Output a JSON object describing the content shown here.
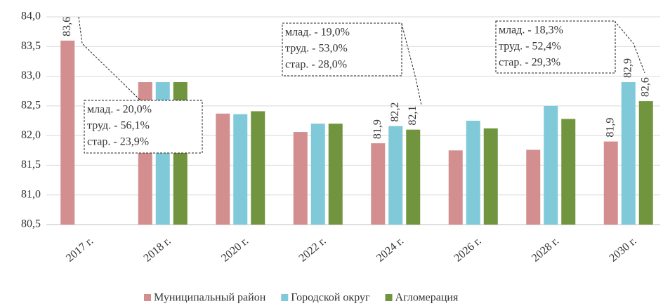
{
  "chart_data": {
    "type": "bar",
    "categories": [
      "2017 г.",
      "2018 г.",
      "2020 г.",
      "2022 г.",
      "2024 г.",
      "2026 г.",
      "2028 г.",
      "2030 г."
    ],
    "series": [
      {
        "name": "Муниципальный район",
        "color": "#d38f8f",
        "values": [
          83.6,
          82.9,
          82.37,
          82.06,
          81.87,
          81.75,
          81.76,
          81.9
        ],
        "value_labels": [
          "83,6",
          null,
          null,
          null,
          "81,9",
          null,
          null,
          "81,9"
        ]
      },
      {
        "name": "Городской округ",
        "color": "#80c9d9",
        "values": [
          null,
          82.9,
          82.36,
          82.2,
          82.16,
          82.25,
          82.5,
          82.9
        ],
        "value_labels": [
          null,
          null,
          null,
          null,
          "82,2",
          null,
          null,
          "82,9"
        ]
      },
      {
        "name": "Агломерация",
        "color": "#71943f",
        "values": [
          null,
          82.9,
          82.41,
          82.2,
          82.1,
          82.12,
          82.28,
          82.58
        ],
        "value_labels": [
          null,
          null,
          null,
          null,
          "82,1",
          null,
          null,
          "82,6"
        ]
      }
    ],
    "ylim": [
      80.5,
      84.0
    ],
    "yticks": [
      {
        "value": 80.5,
        "label": "80,5"
      },
      {
        "value": 81.0,
        "label": "81,0"
      },
      {
        "value": 81.5,
        "label": "81,5"
      },
      {
        "value": 82.0,
        "label": "82,0"
      },
      {
        "value": 82.5,
        "label": "82,5"
      },
      {
        "value": 83.0,
        "label": "83,0"
      },
      {
        "value": 83.5,
        "label": "83,5"
      },
      {
        "value": 84.0,
        "label": "84,0"
      }
    ],
    "grid": true,
    "annotations": [
      {
        "lines": [
          "млад. - 20,0%",
          "труд. - 56,1%",
          "стар. - 23,9%"
        ]
      },
      {
        "lines": [
          "млад. - 19,0%",
          "труд. - 53,0%",
          "стар. - 28,0%"
        ]
      },
      {
        "lines": [
          "млад. - 18,3%",
          "труд. - 52,4%",
          "стар. - 29,3%"
        ]
      }
    ]
  }
}
